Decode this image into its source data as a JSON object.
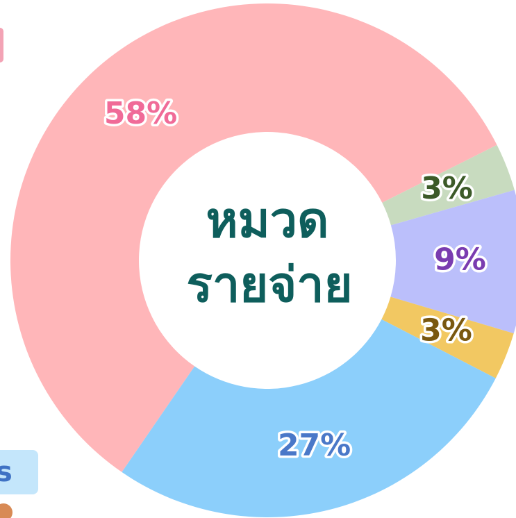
{
  "chart_data": {
    "type": "donut",
    "center_text": [
      "หมวด",
      "รายจ่าย"
    ],
    "categories": [
      null,
      null,
      null,
      null,
      null
    ],
    "values": [
      58,
      3,
      9,
      3,
      27
    ],
    "value_labels": [
      "58%",
      "3%",
      "9%",
      "3%",
      "27%"
    ],
    "colors": [
      "#ffb6b9",
      "#c8dbbf",
      "#bbbffb",
      "#f2c862",
      "#8ccffb"
    ],
    "label_colors": [
      "#f06b98",
      "#3c5a28",
      "#7a3cb0",
      "#7a5810",
      "#4a78c8"
    ]
  },
  "side_badge": {
    "label": "s"
  }
}
